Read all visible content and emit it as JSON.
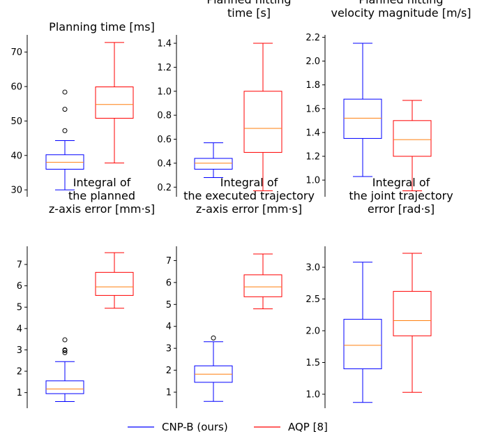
{
  "colors": {
    "cnp": "#0000ff",
    "aqp": "#ff0000",
    "median": "#ff7f0e",
    "outlier": "#000000",
    "axis": "#000000"
  },
  "legend": {
    "position": "bottom-center",
    "entries": [
      {
        "label": "CNP-B (ours)",
        "color": "#0000ff"
      },
      {
        "label": "AQP [8]",
        "color": "#ff0000"
      }
    ]
  },
  "chart_data": [
    {
      "type": "box",
      "title": [
        "Planning time [ms]"
      ],
      "ylim": [
        28,
        75
      ],
      "yticks": [
        30,
        40,
        50,
        60,
        70
      ],
      "ytick_labels": [
        "30",
        "40",
        "50",
        "60",
        "70"
      ],
      "series": [
        {
          "name": "CNP-B (ours)",
          "whisker_low": 30.0,
          "q1": 36.0,
          "median": 38.0,
          "q3": 40.2,
          "whisker_high": 44.3,
          "outliers": [
            47.2,
            53.4,
            58.4
          ]
        },
        {
          "name": "AQP [8]",
          "whisker_low": 37.8,
          "q1": 50.8,
          "median": 54.8,
          "q3": 59.9,
          "whisker_high": 72.8,
          "outliers": []
        }
      ]
    },
    {
      "type": "box",
      "title": [
        "Planned hitting",
        "time [s]"
      ],
      "ylim": [
        0.12,
        1.47
      ],
      "yticks": [
        0.2,
        0.4,
        0.6,
        0.8,
        1.0,
        1.2,
        1.4
      ],
      "ytick_labels": [
        "0.2",
        "0.4",
        "0.6",
        "0.8",
        "1.0",
        "1.2",
        "1.4"
      ],
      "series": [
        {
          "name": "CNP-B (ours)",
          "whisker_low": 0.28,
          "q1": 0.35,
          "median": 0.4,
          "q3": 0.44,
          "whisker_high": 0.57,
          "outliers": []
        },
        {
          "name": "AQP [8]",
          "whisker_low": 0.17,
          "q1": 0.49,
          "median": 0.69,
          "q3": 1.0,
          "whisker_high": 1.4,
          "outliers": []
        }
      ]
    },
    {
      "type": "box",
      "title": [
        "Planned hitting",
        "velocity magnitude [m/s]"
      ],
      "ylim": [
        0.86,
        2.22
      ],
      "yticks": [
        1.0,
        1.2,
        1.4,
        1.6,
        1.8,
        2.0,
        2.2
      ],
      "ytick_labels": [
        "1.0",
        "1.2",
        "1.4",
        "1.6",
        "1.8",
        "2.0",
        "2.2"
      ],
      "series": [
        {
          "name": "CNP-B (ours)",
          "whisker_low": 1.03,
          "q1": 1.35,
          "median": 1.52,
          "q3": 1.68,
          "whisker_high": 2.15,
          "outliers": []
        },
        {
          "name": "AQP [8]",
          "whisker_low": 0.91,
          "q1": 1.2,
          "median": 1.34,
          "q3": 1.5,
          "whisker_high": 1.67,
          "outliers": []
        }
      ]
    },
    {
      "type": "box",
      "title": [
        "Integral of",
        "the planned",
        "z-axis error [mm·s]"
      ],
      "ylim": [
        0.27,
        7.85
      ],
      "yticks": [
        1,
        2,
        3,
        4,
        5,
        6,
        7
      ],
      "ytick_labels": [
        "1",
        "2",
        "3",
        "4",
        "5",
        "6",
        "7"
      ],
      "series": [
        {
          "name": "CNP-B (ours)",
          "whisker_low": 0.58,
          "q1": 0.95,
          "median": 1.17,
          "q3": 1.55,
          "whisker_high": 2.45,
          "outliers": [
            2.87,
            2.97,
            3.0,
            3.47
          ]
        },
        {
          "name": "AQP [8]",
          "whisker_low": 4.95,
          "q1": 5.55,
          "median": 5.95,
          "q3": 6.63,
          "whisker_high": 7.55,
          "outliers": []
        }
      ]
    },
    {
      "type": "box",
      "title": [
        "Integral of",
        "the executed trajectory",
        "z-axis error [mm·s]"
      ],
      "ylim": [
        0.27,
        7.65
      ],
      "yticks": [
        1,
        2,
        3,
        4,
        5,
        6,
        7
      ],
      "ytick_labels": [
        "1",
        "2",
        "3",
        "4",
        "5",
        "6",
        "7"
      ],
      "series": [
        {
          "name": "CNP-B (ours)",
          "whisker_low": 0.58,
          "q1": 1.45,
          "median": 1.82,
          "q3": 2.2,
          "whisker_high": 3.3,
          "outliers": [
            3.47
          ]
        },
        {
          "name": "AQP [8]",
          "whisker_low": 4.8,
          "q1": 5.35,
          "median": 5.8,
          "q3": 6.35,
          "whisker_high": 7.3,
          "outliers": []
        }
      ]
    },
    {
      "type": "box",
      "title": [
        "Integral of",
        "the joint trajectory",
        "error [rad·s]"
      ],
      "ylim": [
        0.78,
        3.33
      ],
      "yticks": [
        1.0,
        1.5,
        2.0,
        2.5,
        3.0
      ],
      "ytick_labels": [
        "1.0",
        "1.5",
        "2.0",
        "2.5",
        "3.0"
      ],
      "series": [
        {
          "name": "CNP-B (ours)",
          "whisker_low": 0.87,
          "q1": 1.4,
          "median": 1.77,
          "q3": 2.18,
          "whisker_high": 3.08,
          "outliers": []
        },
        {
          "name": "AQP [8]",
          "whisker_low": 1.03,
          "q1": 1.92,
          "median": 2.16,
          "q3": 2.62,
          "whisker_high": 3.22,
          "outliers": []
        }
      ]
    }
  ]
}
